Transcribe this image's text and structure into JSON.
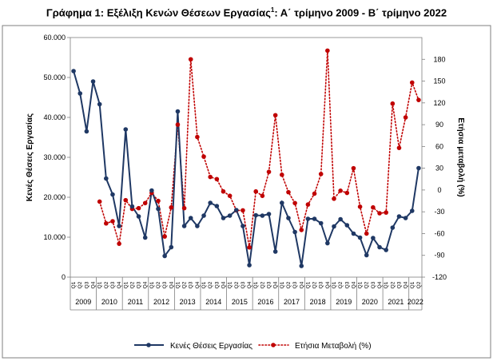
{
  "chart_data": {
    "type": "line",
    "title_main": "Γράφημα 1: Εξέλιξη Κενών Θέσεων Εργασίας",
    "title_sup": "1",
    "title_rest": ": Α΄ τρίμηνο 2009 - Β΄ τρίμηνο 2022",
    "ylabel_left": "Κενές Θέσεις Εργασίας",
    "ylabel_right": "Ετήσια μεταβολή (%)",
    "ylim_left": [
      0,
      60000
    ],
    "ylim_right": [
      -120,
      210
    ],
    "left_ticks": [
      "0",
      "10.000",
      "20.000",
      "30.000",
      "40.000",
      "50.000",
      "60.000"
    ],
    "right_ticks": [
      "-120",
      "-90",
      "-60",
      "-30",
      "0",
      "30",
      "60",
      "90",
      "120",
      "150",
      "180"
    ],
    "quarter_labels": [
      "Q1",
      "Q2",
      "Q3",
      "Q4"
    ],
    "years": [
      "2009",
      "2010",
      "2011",
      "2012",
      "2013",
      "2014",
      "2015",
      "2016",
      "2017",
      "2018",
      "2019",
      "2020",
      "2021",
      "2022"
    ],
    "grid": false,
    "legend_position": "bottom",
    "colors": {
      "vacancies": "#1f3864",
      "change": "#c00000"
    },
    "series": [
      {
        "name": "Κενές Θέσεις Εργασίας",
        "axis": "left",
        "style": "solid",
        "values": [
          51600,
          46000,
          36500,
          49000,
          43300,
          24700,
          20700,
          12800,
          37000,
          17700,
          15200,
          9900,
          21700,
          17100,
          5300,
          7500,
          41500,
          12800,
          14800,
          12800,
          15400,
          18600,
          17800,
          14800,
          15400,
          16800,
          12800,
          3000,
          15500,
          15400,
          15800,
          6400,
          18600,
          14800,
          11300,
          2800,
          14600,
          14600,
          13500,
          8500,
          12700,
          14500,
          13000,
          10900,
          9900,
          5500,
          9800,
          7500,
          6800,
          12400,
          15200,
          14800,
          16600,
          27300
        ]
      },
      {
        "name": "Ετήσια Μεταβολή (%)",
        "axis": "right",
        "style": "dotted",
        "values": [
          null,
          null,
          null,
          null,
          -16,
          -46,
          -43,
          -74,
          -14,
          -26,
          -25,
          -18,
          -4,
          -15,
          -64,
          -24,
          90,
          -25,
          180,
          73,
          46,
          18,
          15,
          -2,
          -8,
          -28,
          -28,
          -79,
          -2,
          -8,
          25,
          103,
          21,
          -3,
          -18,
          -55,
          -20,
          -5,
          22,
          192,
          -12,
          -1,
          -4,
          30,
          -23,
          -60,
          -24,
          -32,
          -31,
          119,
          58,
          100,
          148,
          124
        ]
      }
    ]
  }
}
